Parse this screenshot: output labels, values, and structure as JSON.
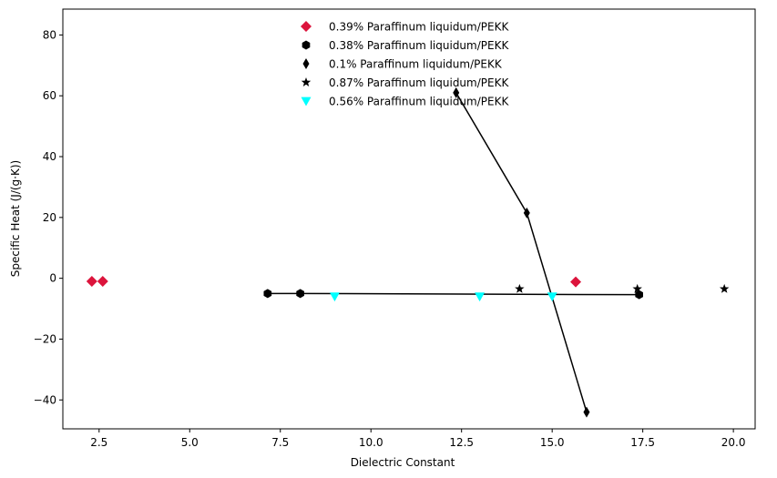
{
  "chart_data": {
    "type": "scatter",
    "xlabel": "Dielectric Constant",
    "ylabel": "Specific Heat (J/(g·K))",
    "xlim": [
      1.5,
      20.6
    ],
    "ylim": [
      -49.5,
      88.5
    ],
    "xticks": [
      2.5,
      5.0,
      7.5,
      10.0,
      12.5,
      15.0,
      17.5,
      20.0
    ],
    "xtick_labels": [
      "2.5",
      "5.0",
      "7.5",
      "10.0",
      "12.5",
      "15.0",
      "17.5",
      "20.0"
    ],
    "yticks": [
      -40,
      -20,
      0,
      20,
      40,
      60,
      80
    ],
    "ytick_labels": [
      "−40",
      "−20",
      "0",
      "20",
      "40",
      "60",
      "80"
    ],
    "grid": false,
    "legend_position": "top-center",
    "series": [
      {
        "name": "0.39% Paraffinum liquidum/PEKK",
        "marker": "diamond",
        "color": "#dc143c",
        "line": false,
        "points": [
          [
            2.3,
            -1.0
          ],
          [
            2.6,
            -1.0
          ],
          [
            15.65,
            -1.2
          ]
        ]
      },
      {
        "name": "0.38% Paraffinum liquidum/PEKK",
        "marker": "hexagon",
        "color": "#000000",
        "line": true,
        "points": [
          [
            7.15,
            -5.0
          ],
          [
            8.05,
            -5.0
          ],
          [
            17.4,
            -5.4
          ]
        ]
      },
      {
        "name": "0.1% Paraffinum liquidum/PEKK",
        "marker": "thin-diamond",
        "color": "#000000",
        "line": true,
        "points": [
          [
            12.35,
            61.0
          ],
          [
            14.3,
            21.5
          ],
          [
            15.95,
            -44.0
          ]
        ]
      },
      {
        "name": "0.87% Paraffinum liquidum/PEKK",
        "marker": "star",
        "color": "#000000",
        "line": false,
        "points": [
          [
            14.1,
            -3.5
          ],
          [
            17.35,
            -3.5
          ],
          [
            19.75,
            -3.5
          ]
        ]
      },
      {
        "name": "0.56% Paraffinum liquidum/PEKK",
        "marker": "triangle-down",
        "color": "#00ffff",
        "line": false,
        "points": [
          [
            9.0,
            -6.0
          ],
          [
            13.0,
            -6.0
          ],
          [
            15.0,
            -6.0
          ]
        ]
      }
    ]
  }
}
